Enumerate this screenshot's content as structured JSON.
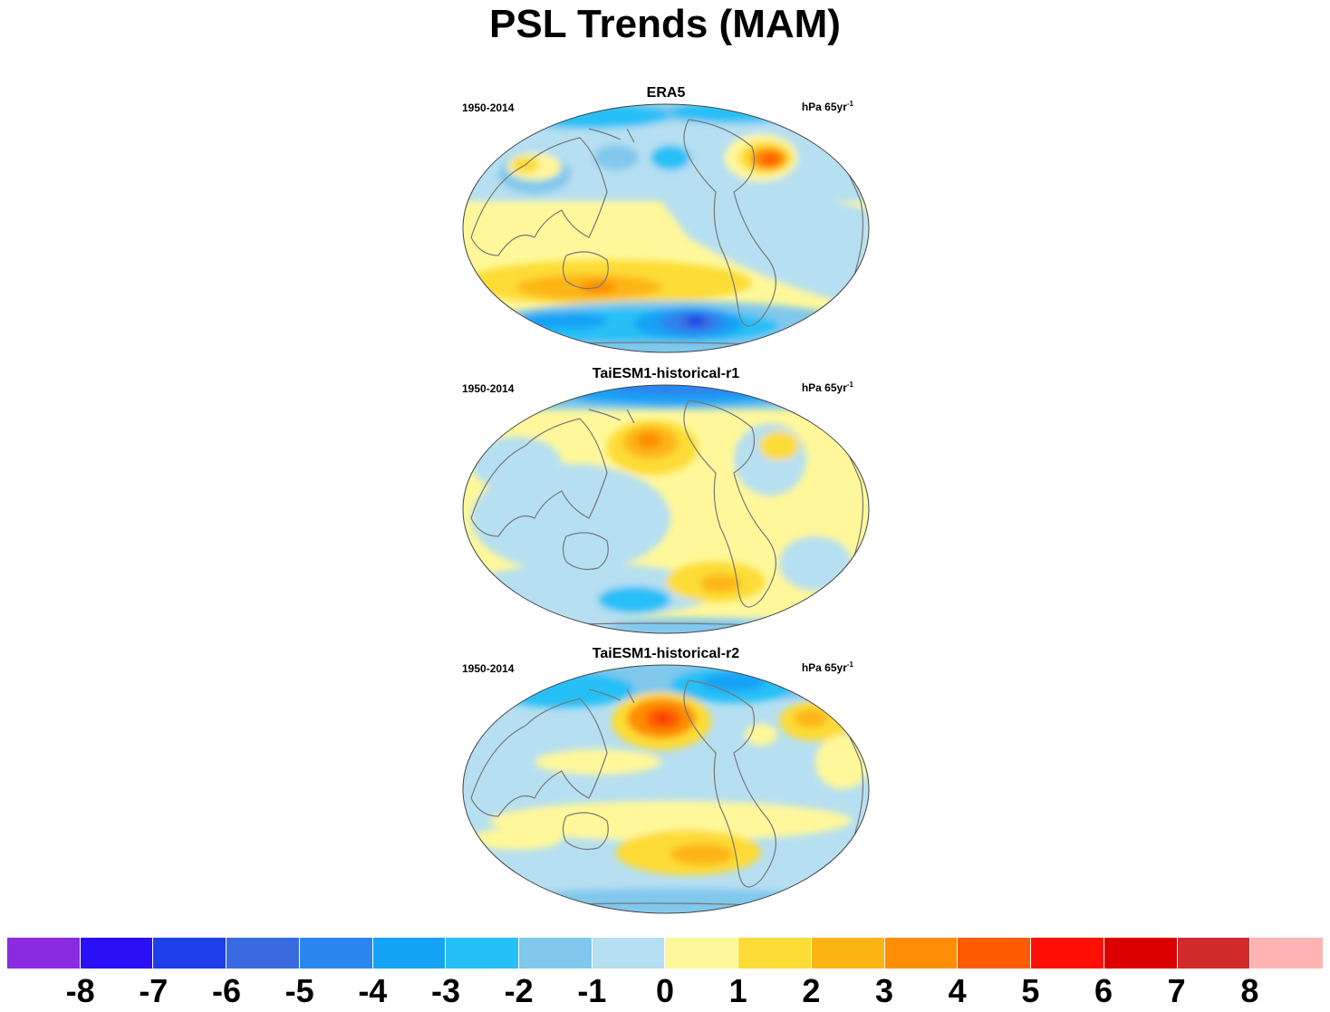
{
  "title": "PSL Trends (MAM)",
  "panels": [
    {
      "name": "ERA5",
      "period": "1950-2014",
      "units": "hPa 65yr",
      "units_sup": "-1"
    },
    {
      "name": "TaiESM1-historical-r1",
      "period": "1950-2014",
      "units": "hPa 65yr",
      "units_sup": "-1"
    },
    {
      "name": "TaiESM1-historical-r2",
      "period": "1950-2014",
      "units": "hPa 65yr",
      "units_sup": "-1"
    }
  ],
  "colorbar": {
    "labels": [
      "-8",
      "-7",
      "-6",
      "-5",
      "-4",
      "-3",
      "-2",
      "-1",
      "0",
      "1",
      "2",
      "3",
      "4",
      "5",
      "6",
      "7",
      "8"
    ],
    "colors": [
      "#8a2be2",
      "#2a10f5",
      "#1e3ee8",
      "#3a6ae0",
      "#2b86f0",
      "#14a3f5",
      "#25c0f7",
      "#80c8ec",
      "#b6dff1",
      "#fff89a",
      "#fddc35",
      "#fdb514",
      "#fd8e05",
      "#fd5c03",
      "#ff1005",
      "#dd0000",
      "#d12a2a",
      "#ffb3b3"
    ]
  },
  "projection": "Robinson",
  "center_longitude": "Pacific"
}
